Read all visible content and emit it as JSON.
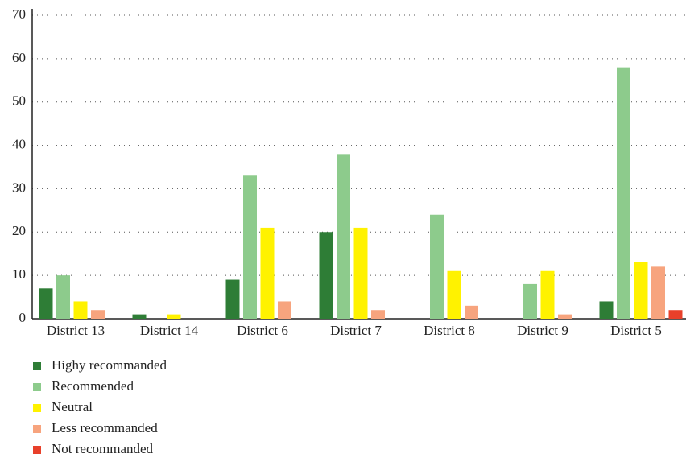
{
  "chart_data": {
    "type": "bar",
    "categories": [
      "District 13",
      "District 14",
      "District 6",
      "District 7",
      "District 8",
      "District 9",
      "District 5"
    ],
    "series": [
      {
        "name": "Highy recommanded",
        "color": "#2e7d36",
        "values": [
          7,
          1,
          9,
          20,
          0,
          0,
          4
        ]
      },
      {
        "name": "Recommended",
        "color": "#8dcb8c",
        "values": [
          10,
          0,
          33,
          38,
          24,
          8,
          58
        ]
      },
      {
        "name": "Neutral",
        "color": "#fff200",
        "values": [
          4,
          1,
          21,
          21,
          11,
          11,
          13
        ]
      },
      {
        "name": "Less recommanded",
        "color": "#f7a47e",
        "values": [
          2,
          0,
          4,
          2,
          3,
          1,
          12
        ]
      },
      {
        "name": "Not recommanded",
        "color": "#e8402a",
        "values": [
          0,
          0,
          0,
          0,
          0,
          0,
          2
        ]
      }
    ],
    "ylim": [
      0,
      70
    ],
    "yticks": [
      0,
      10,
      20,
      30,
      40,
      50,
      60,
      70
    ],
    "grid": true,
    "legend": "bottom"
  }
}
